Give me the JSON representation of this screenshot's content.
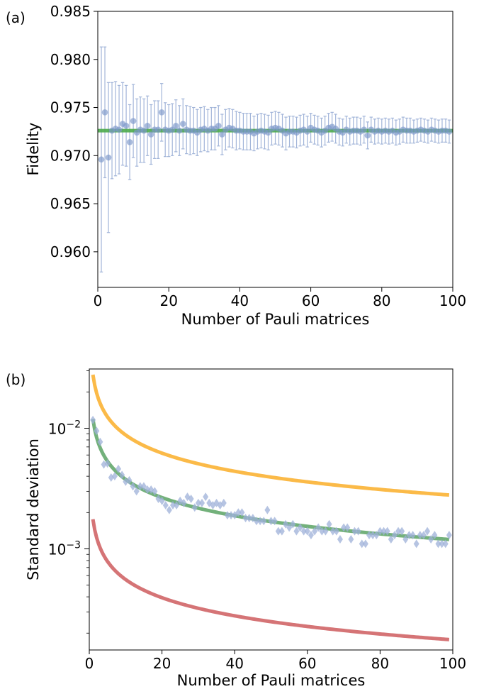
{
  "chart_data": [
    {
      "panel_label": "(a)",
      "type": "scatter",
      "xlabel": "Number of Pauli matrices",
      "ylabel": "Fidelity",
      "xlim": [
        0,
        100
      ],
      "ylim": [
        0.9563,
        0.985
      ],
      "xticks": [
        0,
        20,
        40,
        60,
        80,
        100
      ],
      "xtick_labels": [
        "0",
        "20",
        "40",
        "60",
        "80",
        "100"
      ],
      "yticks": [
        0.96,
        0.965,
        0.97,
        0.975,
        0.98,
        0.985
      ],
      "ytick_labels": [
        "0.960",
        "0.965",
        "0.970",
        "0.975",
        "0.980",
        "0.985"
      ],
      "grid": false,
      "colors": {
        "points": "#7b96c9",
        "reference_line": "#4dab4d"
      },
      "reference_line": {
        "y": 0.9726
      },
      "series": [
        {
          "x": [
            1,
            2,
            3,
            4,
            5,
            6,
            7,
            8,
            9,
            10,
            11,
            12,
            13,
            14,
            15,
            16,
            17,
            18,
            19,
            20,
            21,
            22,
            23,
            24,
            25,
            26,
            27,
            28,
            29,
            30,
            31,
            32,
            33,
            34,
            35,
            36,
            37,
            38,
            39,
            40,
            41,
            42,
            43,
            44,
            45,
            46,
            47,
            48,
            49,
            50,
            51,
            52,
            53,
            54,
            55,
            56,
            57,
            58,
            59,
            60,
            61,
            62,
            63,
            64,
            65,
            66,
            67,
            68,
            69,
            70,
            71,
            72,
            73,
            74,
            75,
            76,
            77,
            78,
            79,
            80,
            81,
            82,
            83,
            84,
            85,
            86,
            87,
            88,
            89,
            90,
            91,
            92,
            93,
            94,
            95,
            96,
            97,
            98,
            99
          ],
          "y": [
            0.9696,
            0.9745,
            0.9698,
            0.9726,
            0.9728,
            0.9727,
            0.9733,
            0.9731,
            0.9714,
            0.9736,
            0.9724,
            0.9727,
            0.9726,
            0.9731,
            0.9722,
            0.9727,
            0.9727,
            0.9745,
            0.9727,
            0.9726,
            0.9727,
            0.9731,
            0.9726,
            0.9733,
            0.9727,
            0.9726,
            0.9726,
            0.9724,
            0.9727,
            0.9728,
            0.9726,
            0.9728,
            0.9728,
            0.9731,
            0.9722,
            0.9727,
            0.9729,
            0.9728,
            0.9726,
            0.9726,
            0.9725,
            0.9725,
            0.9725,
            0.9723,
            0.9725,
            0.9726,
            0.9725,
            0.9724,
            0.9728,
            0.9729,
            0.9728,
            0.9726,
            0.9723,
            0.9725,
            0.9725,
            0.9724,
            0.9726,
            0.9727,
            0.9725,
            0.9729,
            0.9727,
            0.9726,
            0.9724,
            0.9726,
            0.9729,
            0.973,
            0.9728,
            0.9725,
            0.9724,
            0.9727,
            0.9725,
            0.9726,
            0.9726,
            0.9725,
            0.9727,
            0.9721,
            0.9727,
            0.9725,
            0.9726,
            0.9725,
            0.9726,
            0.9725,
            0.9726,
            0.9724,
            0.9725,
            0.9727,
            0.9726,
            0.9726,
            0.9725,
            0.9726,
            0.9727,
            0.9726,
            0.9725,
            0.9727,
            0.9726,
            0.9725,
            0.9726,
            0.9726,
            0.9725
          ],
          "err": [
            0.0117,
            0.0068,
            0.0078,
            0.005,
            0.0049,
            0.0046,
            0.0043,
            0.0042,
            0.0039,
            0.0038,
            0.0035,
            0.0034,
            0.0033,
            0.0031,
            0.0031,
            0.003,
            0.003,
            0.003,
            0.0028,
            0.0027,
            0.0027,
            0.0027,
            0.0026,
            0.0026,
            0.0025,
            0.0025,
            0.0024,
            0.0024,
            0.0023,
            0.0023,
            0.0022,
            0.0022,
            0.0022,
            0.0021,
            0.0021,
            0.0021,
            0.002,
            0.002,
            0.002,
            0.0019,
            0.0019,
            0.0019,
            0.0019,
            0.0018,
            0.0018,
            0.0018,
            0.0018,
            0.0018,
            0.0017,
            0.0017,
            0.0017,
            0.0017,
            0.0017,
            0.0016,
            0.0016,
            0.0016,
            0.0016,
            0.0016,
            0.0016,
            0.0015,
            0.0015,
            0.0015,
            0.0015,
            0.0015,
            0.0015,
            0.0015,
            0.0015,
            0.0014,
            0.0014,
            0.0014,
            0.0014,
            0.0014,
            0.0014,
            0.0014,
            0.0014,
            0.0014,
            0.0013,
            0.0013,
            0.0013,
            0.0013,
            0.0013,
            0.0013,
            0.0013,
            0.0013,
            0.0013,
            0.0013,
            0.0013,
            0.0013,
            0.0012,
            0.0012,
            0.0012,
            0.0012,
            0.0012,
            0.0012,
            0.0012,
            0.0012,
            0.0012,
            0.0012,
            0.0012
          ]
        }
      ]
    },
    {
      "panel_label": "(b)",
      "type": "line",
      "xlabel": "Number of Pauli matrices",
      "ylabel": "Standard deviation",
      "xscale": "linear",
      "yscale": "log",
      "xlim": [
        0,
        100
      ],
      "ylim": [
        0.000145,
        0.031
      ],
      "xticks": [
        0,
        20,
        40,
        60,
        80,
        100
      ],
      "xtick_labels": [
        "0",
        "20",
        "40",
        "60",
        "80",
        "100"
      ],
      "y_major_ticks": [
        0.01,
        0.001
      ],
      "y_major_tick_labels": [
        {
          "base": "10",
          "exp": "−2"
        },
        {
          "base": "10",
          "exp": "−3"
        }
      ],
      "grid": false,
      "colors": {
        "upper_curve": "#fbb234",
        "middle_curve": "#64a96d",
        "lower_curve": "#d06567",
        "points": "#9db0d8"
      },
      "curves": [
        {
          "k": 0.0278,
          "color": "#fbb234"
        },
        {
          "k": 0.0119,
          "color": "#64a96d"
        },
        {
          "k": 0.00176,
          "color": "#d06567"
        }
      ],
      "scatter": {
        "x": [
          1,
          2,
          3,
          4,
          5,
          6,
          7,
          8,
          9,
          10,
          11,
          12,
          13,
          14,
          15,
          16,
          17,
          18,
          19,
          20,
          21,
          22,
          23,
          24,
          25,
          26,
          27,
          28,
          29,
          30,
          31,
          32,
          33,
          34,
          35,
          36,
          37,
          38,
          39,
          40,
          41,
          42,
          43,
          44,
          45,
          46,
          47,
          48,
          49,
          50,
          51,
          52,
          53,
          54,
          55,
          56,
          57,
          58,
          59,
          60,
          61,
          62,
          63,
          64,
          65,
          66,
          67,
          68,
          69,
          70,
          71,
          72,
          73,
          74,
          75,
          76,
          77,
          78,
          79,
          80,
          81,
          82,
          83,
          84,
          85,
          86,
          87,
          88,
          89,
          90,
          91,
          92,
          93,
          94,
          95,
          96,
          97,
          98,
          99
        ],
        "y": [
          0.0117,
          0.0095,
          0.0077,
          0.005,
          0.0051,
          0.0039,
          0.004,
          0.0046,
          0.0041,
          0.0036,
          0.0037,
          0.0033,
          0.003,
          0.0033,
          0.0033,
          0.0031,
          0.0031,
          0.003,
          0.0026,
          0.0025,
          0.0023,
          0.0021,
          0.0023,
          0.0023,
          0.0025,
          0.0024,
          0.0027,
          0.0026,
          0.0022,
          0.0024,
          0.0024,
          0.0027,
          0.0024,
          0.0023,
          0.0024,
          0.0023,
          0.0024,
          0.0019,
          0.0019,
          0.0019,
          0.002,
          0.002,
          0.0018,
          0.0018,
          0.0018,
          0.0017,
          0.0017,
          0.0017,
          0.0021,
          0.0017,
          0.0017,
          0.0014,
          0.0014,
          0.0016,
          0.0015,
          0.0016,
          0.0014,
          0.0015,
          0.0014,
          0.0014,
          0.0013,
          0.0014,
          0.0015,
          0.0014,
          0.0014,
          0.0016,
          0.0014,
          0.0014,
          0.0012,
          0.0015,
          0.0015,
          0.0012,
          0.0014,
          0.0014,
          0.0011,
          0.0011,
          0.0013,
          0.0013,
          0.0013,
          0.0014,
          0.0014,
          0.0014,
          0.0012,
          0.0013,
          0.0014,
          0.0014,
          0.0012,
          0.0013,
          0.0013,
          0.0011,
          0.0013,
          0.0013,
          0.0014,
          0.0012,
          0.0013,
          0.0011,
          0.0011,
          0.0011,
          0.0013
        ]
      }
    }
  ]
}
